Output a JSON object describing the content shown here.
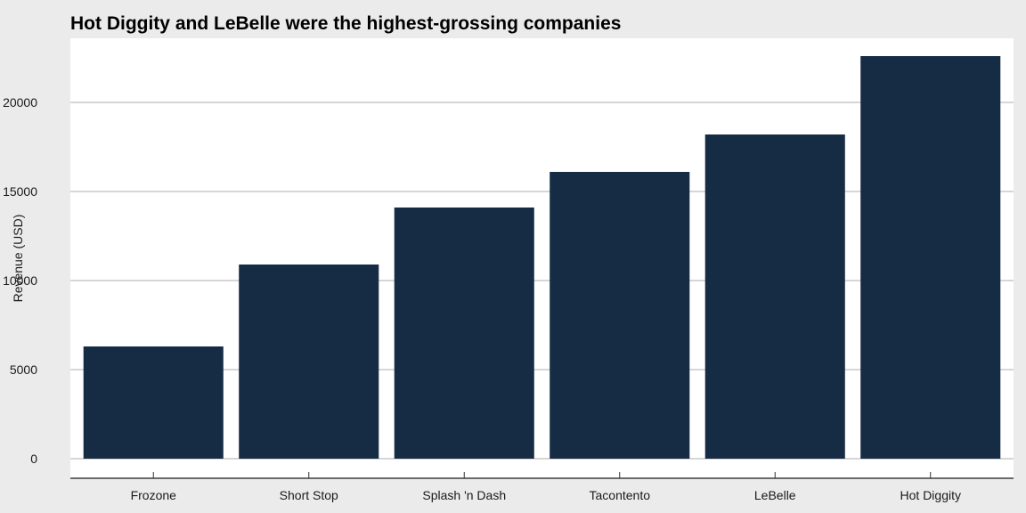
{
  "chart_data": {
    "type": "bar",
    "title": "Hot Diggity and LeBelle were the highest-grossing companies",
    "xlabel": "",
    "ylabel": "Revenue (USD)",
    "categories": [
      "Frozone",
      "Short Stop",
      "Splash 'n Dash",
      "Tacontento",
      "LeBelle",
      "Hot Diggity"
    ],
    "values": [
      6300,
      10900,
      14100,
      16100,
      18200,
      22600
    ],
    "ylim": [
      0,
      23600
    ],
    "yticks": [
      0,
      5000,
      10000,
      15000,
      20000
    ],
    "grid": "horizontal",
    "colors": {
      "bar": "#162b44",
      "panel": "#ffffff",
      "background": "#ebebeb",
      "grid": "#bebebe"
    }
  }
}
